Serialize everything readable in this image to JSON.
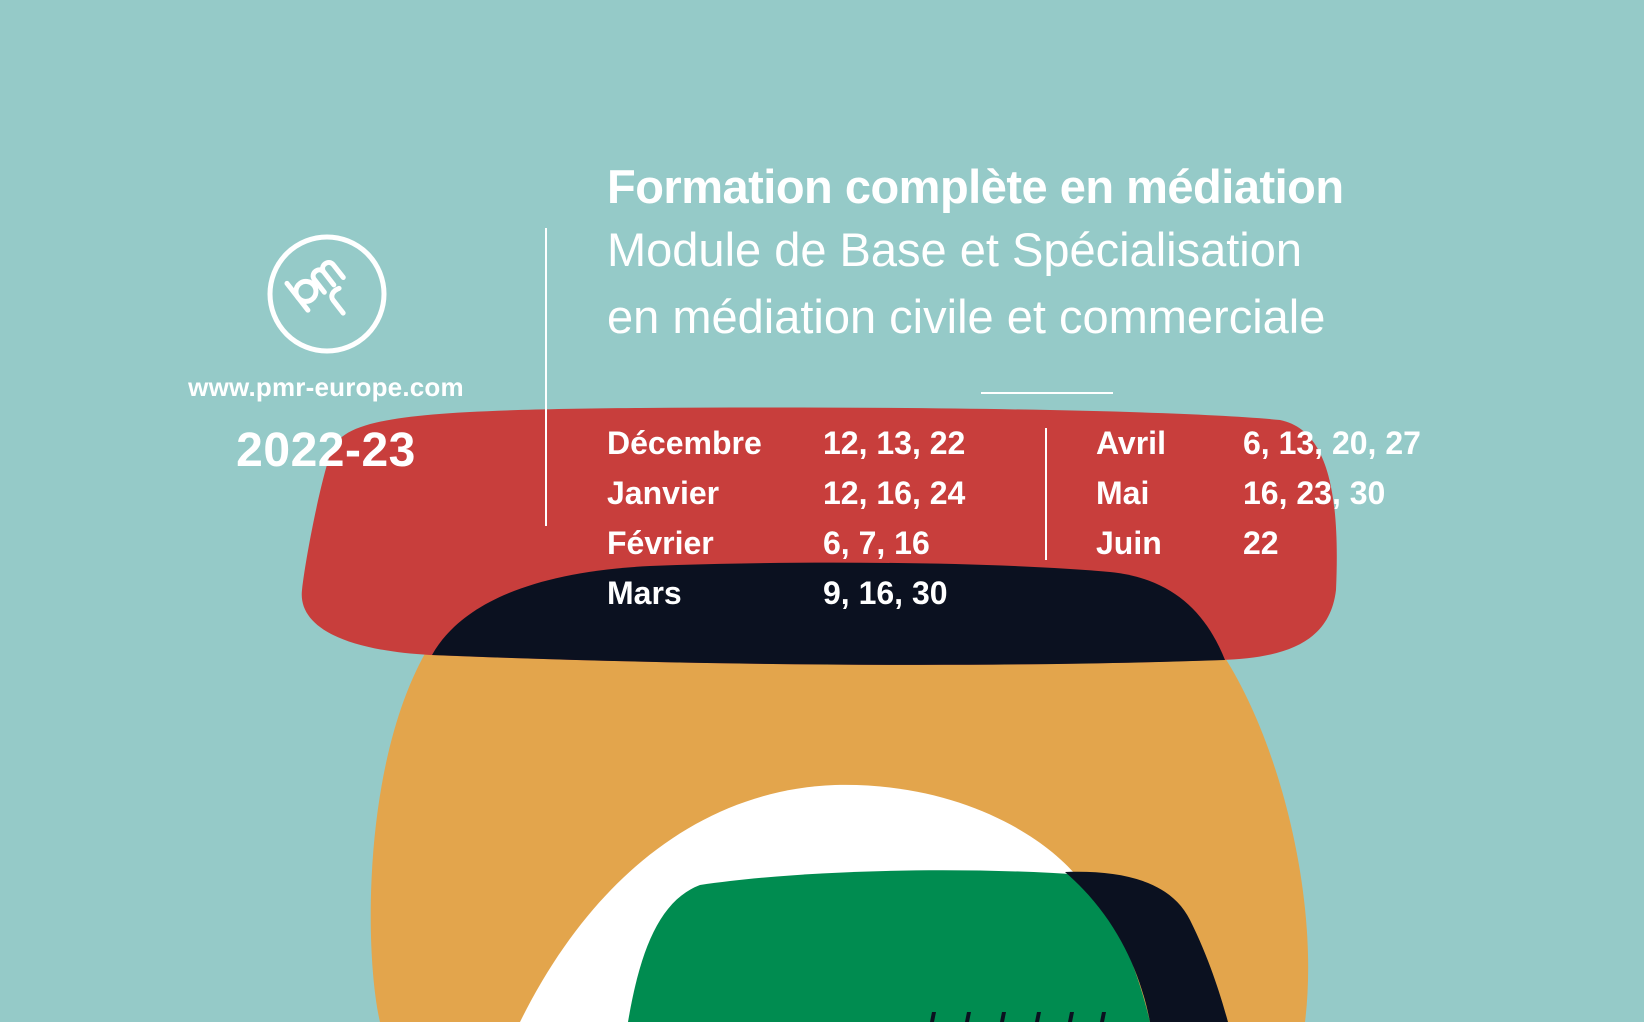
{
  "site_url": "www.pmr-europe.com",
  "year": "2022-23",
  "heading": {
    "title": "Formation complète en médiation",
    "subtitle_line1": "Module de Base et Spécialisation",
    "subtitle_line2": "en médiation civile et commerciale"
  },
  "schedule_left": [
    {
      "month": "Décembre",
      "days": "12, 13, 22"
    },
    {
      "month": "Janvier",
      "days": "12, 16, 24"
    },
    {
      "month": "Février",
      "days": "6, 7, 16"
    },
    {
      "month": "Mars",
      "days": "9, 16, 30"
    }
  ],
  "schedule_right": [
    {
      "month": "Avril",
      "days": "6, 13, 20, 27"
    },
    {
      "month": "Mai",
      "days": "16, 23, 30"
    },
    {
      "month": "Juin",
      "days": "22"
    }
  ],
  "colors": {
    "background": "#95cac8",
    "red": "#c83e3c",
    "black": "#0b1120",
    "orange": "#e3a54c",
    "green": "#008c50",
    "white": "#ffffff"
  },
  "logo_icon": "pmr-circle-logo"
}
